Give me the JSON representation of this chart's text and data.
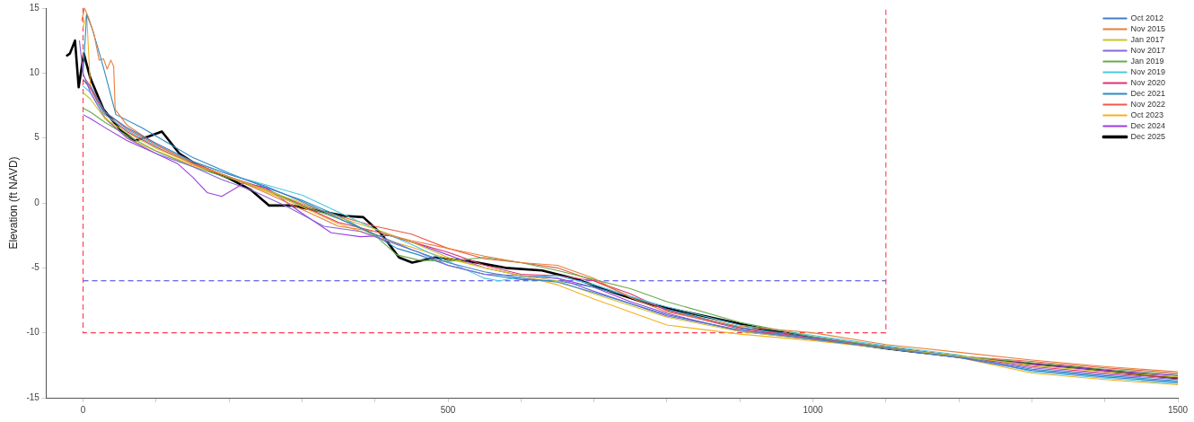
{
  "chart_data": {
    "type": "line",
    "ylabel": "Elevation (ft NAVD)",
    "xlim": [
      -50,
      1500
    ],
    "ylim": [
      -15,
      15
    ],
    "xticks": [
      0,
      {
        "value": 100,
        "label": null
      },
      {
        "value": 200,
        "label": null
      },
      {
        "value": 300,
        "label": null
      },
      {
        "value": 400,
        "label": null
      },
      500,
      {
        "value": 600,
        "label": null
      },
      {
        "value": 700,
        "label": null
      },
      {
        "value": 800,
        "label": null
      },
      {
        "value": 900,
        "label": null
      },
      1000,
      {
        "value": 1100,
        "label": null
      },
      {
        "value": 1200,
        "label": null
      },
      {
        "value": 1300,
        "label": null
      },
      {
        "value": 1400,
        "label": null
      },
      1500
    ],
    "yticks": [
      -15,
      -10,
      -5,
      0,
      5,
      10,
      15
    ],
    "grid": false,
    "legend": "top right",
    "marker": "none",
    "line_style": "solid",
    "series": [
      {
        "name": "Oct 2012",
        "color": "#3f7fc8",
        "x": [
          0,
          10,
          30,
          60,
          100,
          150,
          200,
          250,
          300,
          350,
          400,
          450,
          500,
          550,
          600,
          650,
          700,
          800,
          900,
          1000,
          1100,
          1200,
          1300,
          1400,
          1500
        ],
        "values": [
          9.5,
          9.0,
          7.0,
          5.8,
          4.6,
          3.2,
          2.2,
          1.3,
          0.1,
          -1.2,
          -2.4,
          -3.6,
          -4.6,
          -5.3,
          -5.8,
          -6.1,
          -6.9,
          -8.6,
          -9.8,
          -10.5,
          -11.2,
          -11.9,
          -12.9,
          -13.4,
          -13.8
        ]
      },
      {
        "name": "Nov 2015",
        "color": "#e8803a",
        "x": [
          -2,
          2,
          8,
          15,
          22,
          28,
          33,
          38,
          42,
          44,
          60,
          100,
          150,
          200,
          250,
          300,
          350,
          400,
          450,
          500,
          550,
          600,
          650,
          700,
          750,
          800,
          900,
          1000,
          1100,
          1200,
          1300,
          1400,
          1500
        ],
        "values": [
          14.0,
          15.0,
          14.2,
          13.0,
          11.0,
          11.1,
          10.3,
          11.0,
          10.5,
          7.2,
          6.0,
          4.5,
          3.0,
          2.0,
          0.8,
          -0.5,
          -1.8,
          -2.2,
          -2.9,
          -3.5,
          -4.1,
          -4.6,
          -4.8,
          -5.8,
          -7.3,
          -8.4,
          -9.5,
          -10.0,
          -10.9,
          -11.5,
          -12.1,
          -12.6,
          -13.0
        ]
      },
      {
        "name": "Jan 2017",
        "color": "#c9c42c",
        "x": [
          0,
          10,
          30,
          60,
          100,
          150,
          200,
          250,
          300,
          350,
          400,
          450,
          500,
          550,
          600,
          650,
          700,
          800,
          900,
          1000,
          1100,
          1200,
          1300,
          1400,
          1500
        ],
        "values": [
          8.5,
          8.0,
          6.5,
          5.4,
          4.2,
          3.0,
          2.0,
          1.0,
          0.0,
          -1.1,
          -2.0,
          -3.0,
          -4.2,
          -5.0,
          -5.6,
          -6.0,
          -7.0,
          -8.8,
          -9.9,
          -10.5,
          -11.2,
          -11.8,
          -12.5,
          -13.0,
          -13.4
        ]
      },
      {
        "name": "Nov 2017",
        "color": "#8a66d8",
        "x": [
          -5,
          0,
          10,
          30,
          60,
          100,
          150,
          190,
          230,
          280,
          330,
          380,
          420,
          460,
          500,
          550,
          600,
          650,
          700,
          800,
          900,
          1000,
          1100,
          1200,
          1300,
          1400,
          1500
        ],
        "values": [
          12.5,
          10.0,
          8.5,
          6.5,
          5.0,
          3.8,
          2.8,
          1.8,
          1.0,
          -0.3,
          -1.8,
          -2.2,
          -3.0,
          -3.8,
          -4.8,
          -5.5,
          -5.6,
          -5.8,
          -6.8,
          -8.7,
          -9.8,
          -10.4,
          -11.2,
          -11.9,
          -12.7,
          -13.2,
          -13.6
        ]
      },
      {
        "name": "Jan 2019",
        "color": "#6aaa4c",
        "x": [
          0,
          10,
          30,
          60,
          100,
          150,
          200,
          250,
          300,
          350,
          400,
          430,
          460,
          500,
          550,
          600,
          650,
          700,
          750,
          800,
          900,
          1000,
          1100,
          1200,
          1300,
          1400,
          1500
        ],
        "values": [
          7.3,
          7.0,
          6.2,
          5.2,
          4.0,
          2.8,
          1.9,
          1.0,
          -0.2,
          -1.2,
          -2.5,
          -4.0,
          -4.4,
          -4.5,
          -4.2,
          -4.6,
          -5.2,
          -5.9,
          -6.6,
          -7.6,
          -9.2,
          -10.3,
          -11.1,
          -11.8,
          -12.3,
          -12.8,
          -13.2
        ]
      },
      {
        "name": "Nov 2019",
        "color": "#4cc8e2",
        "x": [
          0,
          10,
          30,
          60,
          100,
          150,
          200,
          250,
          300,
          350,
          400,
          450,
          500,
          550,
          570,
          600,
          650,
          700,
          750,
          800,
          900,
          1000,
          1100,
          1200,
          1300,
          1400,
          1500
        ],
        "values": [
          9.0,
          8.5,
          6.8,
          5.6,
          4.4,
          3.2,
          2.2,
          1.4,
          0.6,
          -0.7,
          -2.0,
          -3.2,
          -4.5,
          -5.8,
          -6.0,
          -5.7,
          -5.6,
          -6.3,
          -7.2,
          -8.0,
          -9.4,
          -10.2,
          -11.0,
          -11.7,
          -13.0,
          -13.5,
          -13.9
        ]
      },
      {
        "name": "Nov 2020",
        "color": "#e0326c",
        "x": [
          0,
          10,
          30,
          60,
          100,
          150,
          200,
          250,
          300,
          350,
          400,
          450,
          500,
          550,
          600,
          650,
          700,
          750,
          800,
          900,
          1000,
          1100,
          1200,
          1300,
          1400,
          1500
        ],
        "values": [
          9.5,
          8.8,
          6.8,
          5.5,
          4.3,
          3.0,
          2.0,
          1.1,
          -0.2,
          -1.5,
          -2.2,
          -3.0,
          -3.8,
          -4.8,
          -5.5,
          -5.6,
          -6.0,
          -7.0,
          -8.3,
          -9.7,
          -10.4,
          -11.1,
          -11.8,
          -12.6,
          -13.1,
          -13.5
        ]
      },
      {
        "name": "Dec 2021",
        "color": "#2a8ac2",
        "x": [
          0,
          5,
          12,
          20,
          30,
          45,
          80,
          120,
          150,
          200,
          250,
          300,
          350,
          400,
          430,
          460,
          500,
          550,
          600,
          650,
          700,
          750,
          800,
          900,
          1000,
          1100,
          1200,
          1300,
          1400,
          1500
        ],
        "values": [
          10.0,
          14.5,
          13.5,
          12.0,
          10.0,
          6.8,
          5.8,
          4.5,
          3.5,
          2.3,
          1.2,
          0.2,
          -1.0,
          -2.5,
          -3.5,
          -4.0,
          -4.8,
          -5.5,
          -5.9,
          -6.0,
          -6.5,
          -7.2,
          -8.2,
          -9.6,
          -10.3,
          -11.1,
          -11.8,
          -12.8,
          -13.3,
          -13.7
        ]
      },
      {
        "name": "Nov 2022",
        "color": "#ef5a4a",
        "x": [
          0,
          10,
          30,
          60,
          100,
          150,
          200,
          250,
          300,
          350,
          400,
          450,
          500,
          550,
          600,
          650,
          700,
          750,
          800,
          900,
          1000,
          1100,
          1200,
          1300,
          1400,
          1500
        ],
        "values": [
          9.8,
          9.0,
          7.0,
          5.7,
          4.5,
          3.1,
          2.0,
          1.0,
          -0.1,
          -1.0,
          -1.8,
          -2.4,
          -3.5,
          -4.3,
          -4.6,
          -5.0,
          -6.0,
          -7.2,
          -8.2,
          -9.6,
          -10.4,
          -11.1,
          -11.8,
          -12.2,
          -12.7,
          -13.1
        ]
      },
      {
        "name": "Oct 2023",
        "color": "#f5b021",
        "x": [
          0,
          5,
          10,
          30,
          60,
          100,
          150,
          200,
          250,
          300,
          350,
          400,
          450,
          500,
          550,
          600,
          650,
          700,
          750,
          800,
          900,
          1000,
          1100,
          1200,
          1300,
          1400,
          1500
        ],
        "values": [
          13.5,
          14.5,
          9.0,
          6.6,
          5.0,
          4.0,
          2.9,
          2.0,
          0.9,
          -0.3,
          -1.6,
          -2.6,
          -3.4,
          -4.3,
          -5.0,
          -5.6,
          -6.3,
          -7.4,
          -8.4,
          -9.4,
          -10.1,
          -10.6,
          -11.2,
          -11.9,
          -13.1,
          -13.6,
          -14.0
        ]
      },
      {
        "name": "Dec 2024",
        "color": "#9b3fe0",
        "x": [
          0,
          10,
          30,
          60,
          100,
          130,
          150,
          170,
          190,
          220,
          250,
          300,
          340,
          380,
          420,
          460,
          500,
          550,
          600,
          650,
          700,
          750,
          800,
          900,
          1000,
          1100,
          1200,
          1300,
          1400,
          1500
        ],
        "values": [
          6.8,
          6.5,
          5.8,
          4.8,
          3.8,
          3.0,
          2.0,
          0.8,
          0.5,
          1.5,
          1.2,
          -0.8,
          -2.3,
          -2.6,
          -2.5,
          -3.2,
          -4.0,
          -5.0,
          -5.6,
          -5.8,
          -6.5,
          -7.6,
          -8.5,
          -9.9,
          -10.5,
          -11.2,
          -11.9,
          -12.4,
          -12.9,
          -13.3
        ]
      },
      {
        "name": "Dec 2025",
        "color": "#000000",
        "x": [
          -23,
          -18,
          -11,
          -6,
          1,
          10,
          28,
          53,
          71,
          89,
          108,
          132,
          157,
          200,
          230,
          255,
          286,
          322,
          359,
          384,
          409,
          433,
          451,
          482,
          531,
          579,
          629,
          678,
          727,
          776,
          850,
          923,
          1000,
          1100,
          1241,
          1364,
          1500
        ],
        "values": [
          11.3,
          11.5,
          12.5,
          8.9,
          11.5,
          9.6,
          7.2,
          5.5,
          4.8,
          5.1,
          5.5,
          3.8,
          2.9,
          1.9,
          1.0,
          -0.2,
          -0.2,
          -0.6,
          -1.0,
          -1.1,
          -2.4,
          -4.2,
          -4.6,
          -4.2,
          -4.5,
          -5.0,
          -5.2,
          -5.9,
          -6.9,
          -7.8,
          -8.7,
          -9.6,
          -10.4,
          -11.2,
          -12.1,
          -12.7,
          -13.5
        ]
      },
      {
        "color": "#ff3b4e",
        "line_style": "dashed",
        "x": [
          0,
          0,
          1100,
          1100
        ],
        "values": [
          15,
          -10,
          -10,
          15
        ]
      },
      {
        "color": "#3a3af0",
        "line_style": "dashed",
        "x": [
          0,
          1100
        ],
        "values": [
          -6,
          -6
        ]
      }
    ]
  }
}
